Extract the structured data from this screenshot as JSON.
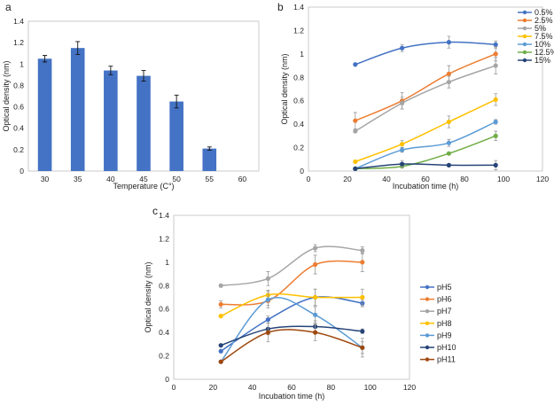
{
  "chart_data": [
    {
      "panel": "a",
      "type": "bar",
      "xlabel": "Temperature (C°)",
      "ylabel": "Optical density (nm)",
      "categories": [
        "30",
        "35",
        "40",
        "45",
        "50",
        "55",
        "60"
      ],
      "values": [
        1.05,
        1.15,
        0.94,
        0.89,
        0.65,
        0.21,
        0
      ],
      "errors": [
        0.03,
        0.06,
        0.04,
        0.05,
        0.06,
        0.015,
        0
      ],
      "ylim": [
        0,
        1.4
      ],
      "yticks": [
        "0",
        "0.2",
        "0.4",
        "0.6",
        "0.8",
        "1",
        "1.2",
        "1.4"
      ],
      "grid": false,
      "color": "#4472C4"
    },
    {
      "panel": "b",
      "type": "line",
      "xlabel": "Incubation time (h)",
      "ylabel": "Optical density (nm)",
      "xlim": [
        0,
        120
      ],
      "ylim": [
        0,
        1.4
      ],
      "xticks": [
        "0",
        "20",
        "40",
        "60",
        "80",
        "100",
        "120"
      ],
      "yticks": [
        "0",
        "0.2",
        "0.4",
        "0.6",
        "0.8",
        "1",
        "1.2",
        "1.4"
      ],
      "legend": "top-right",
      "grid": false,
      "x": [
        24,
        48,
        72,
        96
      ],
      "series": [
        {
          "name": "0.5%",
          "color": "#4472C4",
          "values": [
            0.91,
            1.05,
            1.1,
            1.08
          ],
          "errors": [
            0.01,
            0.03,
            0.05,
            0.03
          ]
        },
        {
          "name": "2.5%",
          "color": "#ED7D31",
          "values": [
            0.43,
            0.6,
            0.83,
            1.0
          ],
          "errors": [
            0.07,
            0.07,
            0.07,
            0.06
          ]
        },
        {
          "name": "5%",
          "color": "#A5A5A5",
          "values": [
            0.34,
            0.58,
            0.76,
            0.9
          ],
          "errors": [
            0.01,
            0.05,
            0.05,
            0.07
          ]
        },
        {
          "name": "7.5%",
          "color": "#FFC000",
          "values": [
            0.08,
            0.23,
            0.42,
            0.61
          ],
          "errors": [
            0.01,
            0.03,
            0.05,
            0.05
          ]
        },
        {
          "name": "10%",
          "color": "#5B9BD5",
          "values": [
            0.02,
            0.18,
            0.24,
            0.42
          ],
          "errors": [
            0.01,
            0.02,
            0.03,
            0.02
          ]
        },
        {
          "name": "12.5%",
          "color": "#70AD47",
          "values": [
            0.02,
            0.04,
            0.15,
            0.3
          ],
          "errors": [
            0.005,
            0.01,
            0.01,
            0.04
          ]
        },
        {
          "name": "15%",
          "color": "#264478",
          "values": [
            0.02,
            0.06,
            0.05,
            0.05
          ],
          "errors": [
            0.01,
            0.03,
            0.01,
            0.04
          ]
        }
      ]
    },
    {
      "panel": "c",
      "type": "line",
      "xlabel": "Incubation time (h)",
      "ylabel": "Optical density (nm)",
      "xlim": [
        0,
        120
      ],
      "ylim": [
        0,
        1.4
      ],
      "xticks": [
        "0",
        "20",
        "40",
        "60",
        "80",
        "100",
        "120"
      ],
      "yticks": [
        "0",
        "0.2",
        "0.4",
        "0.6",
        "0.8",
        "1",
        "1.2",
        "1.4"
      ],
      "legend": "right",
      "grid": false,
      "x": [
        24,
        48,
        72,
        96
      ],
      "series": [
        {
          "name": "pH5",
          "color": "#4472C4",
          "values": [
            0.24,
            0.51,
            0.7,
            0.65
          ],
          "errors": [
            0.01,
            0.03,
            0.07,
            0.03
          ]
        },
        {
          "name": "pH6",
          "color": "#ED7D31",
          "values": [
            0.64,
            0.67,
            0.98,
            1.0
          ],
          "errors": [
            0.03,
            0.04,
            0.08,
            0.08
          ]
        },
        {
          "name": "pH7",
          "color": "#A5A5A5",
          "values": [
            0.8,
            0.86,
            1.12,
            1.1
          ],
          "errors": [
            0.01,
            0.06,
            0.03,
            0.03
          ]
        },
        {
          "name": "pH8",
          "color": "#FFC000",
          "values": [
            0.54,
            0.72,
            0.7,
            0.7
          ],
          "errors": [
            0.01,
            0.04,
            0.07,
            0.07
          ]
        },
        {
          "name": "pH9",
          "color": "#5B9BD5",
          "values": [
            0.15,
            0.68,
            0.55,
            0.27
          ],
          "errors": [
            0.01,
            0.07,
            0.07,
            0.05
          ]
        },
        {
          "name": "pH10",
          "color": "#264478",
          "values": [
            0.29,
            0.43,
            0.45,
            0.41
          ],
          "errors": [
            0.01,
            0.05,
            0.05,
            0.02
          ]
        },
        {
          "name": "pH11",
          "color": "#9E480E",
          "values": [
            0.15,
            0.4,
            0.4,
            0.27
          ],
          "errors": [
            0.01,
            0.08,
            0.07,
            0.08
          ]
        }
      ]
    }
  ]
}
